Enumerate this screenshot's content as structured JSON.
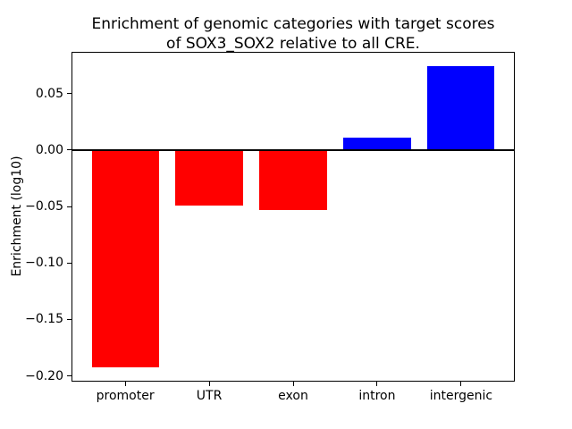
{
  "figure": {
    "background": "#ffffff",
    "title_line1": "Enrichment of genomic categories with target scores",
    "title_line2": "of SOX3_SOX2 relative to all CRE.",
    "ylabel": "Enrichment (log10)"
  },
  "chart_data": {
    "type": "bar",
    "title": "Enrichment of genomic categories with target scores\nof SOX3_SOX2 relative to all CRE.",
    "xlabel": "",
    "ylabel": "Enrichment (log10)",
    "categories": [
      "promoter",
      "UTR",
      "exon",
      "intron",
      "intergenic"
    ],
    "values": [
      -0.192,
      -0.049,
      -0.053,
      0.011,
      0.074
    ],
    "bar_colors": [
      "#ff0000",
      "#ff0000",
      "#ff0000",
      "#0000ff",
      "#0000ff"
    ],
    "negative_color": "#ff0000",
    "positive_color": "#0000ff",
    "axis_color": "#000000",
    "ylim": [
      -0.205,
      0.087
    ],
    "yticks": [
      0.05,
      0.0,
      -0.05,
      -0.1,
      -0.15,
      -0.2
    ],
    "ytick_labels": [
      "0.05",
      "0.00",
      "−0.05",
      "−0.10",
      "−0.15",
      "−0.20"
    ],
    "xlim": [
      -0.64,
      4.64
    ],
    "bar_width": 0.8,
    "zero_line": true,
    "grid": false,
    "legend_position": "none"
  }
}
